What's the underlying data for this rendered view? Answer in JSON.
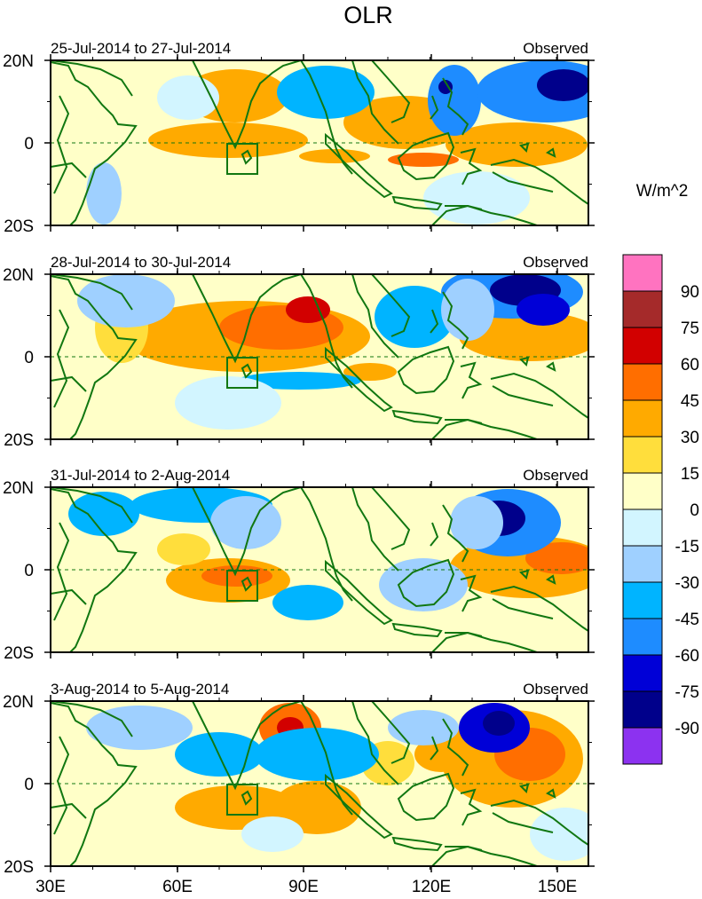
{
  "title": "OLR",
  "units": "W/m^2",
  "panels": [
    {
      "date_range": "25-Jul-2014 to 27-Jul-2014",
      "label": "Observed"
    },
    {
      "date_range": "28-Jul-2014 to 30-Jul-2014",
      "label": "Observed"
    },
    {
      "date_range": "31-Jul-2014 to 2-Aug-2014",
      "label": "Observed"
    },
    {
      "date_range": "3-Aug-2014 to 5-Aug-2014",
      "label": "Observed"
    }
  ],
  "lat_labels": [
    "20N",
    "0",
    "20S"
  ],
  "lon_labels": [
    "30E",
    "60E",
    "90E",
    "120E",
    "150E"
  ],
  "colorbar": {
    "labels": [
      "90",
      "75",
      "60",
      "45",
      "30",
      "15",
      "0",
      "-15",
      "-30",
      "-45",
      "-60",
      "-75",
      "-90"
    ],
    "colors": [
      "#ff73c0",
      "#a52a2a",
      "#d20000",
      "#ff6e00",
      "#ffaa00",
      "#ffde3c",
      "#ffffc8",
      "#d2f5ff",
      "#9fd0ff",
      "#00b4ff",
      "#1e8cff",
      "#0000d7",
      "#00008b",
      "#8c32f0"
    ]
  },
  "colors": {
    "coast": "#117711",
    "box": "#117711",
    "positive": [
      "#ffde3c",
      "#ffaa00",
      "#ff6e00",
      "#d20000"
    ],
    "negative": [
      "#d2f5ff",
      "#9fd0ff",
      "#00b4ff",
      "#1e8cff",
      "#0000d7",
      "#00008b",
      "#8c32f0"
    ]
  }
}
